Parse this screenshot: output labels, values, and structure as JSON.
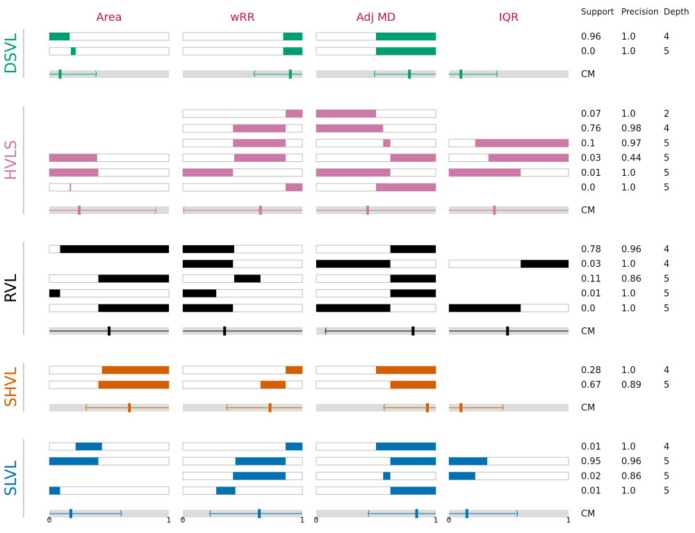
{
  "chart_data": {
    "type": "bar",
    "columns": [
      "Area",
      "wRR",
      "Adj MD",
      "IQR"
    ],
    "stats_headers": [
      "Support",
      "Precision",
      "Depth"
    ],
    "cm_label": "CM",
    "x_ticks": [
      "0",
      "1"
    ],
    "xlim": [
      0,
      1
    ],
    "groups": [
      {
        "name": "DSVL",
        "color": "#009e73",
        "rules": [
          {
            "bars": [
              [
                0,
                0.17
              ],
              [
                0.84,
                1
              ],
              [
                0.5,
                1
              ],
              null
            ],
            "support": "0.96",
            "precision": "1.0",
            "depth": "4"
          },
          {
            "bars": [
              [
                0.18,
                0.22
              ],
              [
                0.84,
                1
              ],
              [
                0.5,
                1
              ],
              null
            ],
            "support": "0.0",
            "precision": "1.0",
            "depth": "5"
          }
        ],
        "cm": [
          {
            "lo": null,
            "hi": 0.39,
            "mark": 0.09
          },
          {
            "lo": 0.6,
            "hi": null,
            "mark": 0.9
          },
          {
            "lo": 0.49,
            "hi": null,
            "mark": 0.78
          },
          {
            "lo": null,
            "hi": 0.4,
            "mark": 0.1
          }
        ]
      },
      {
        "name": "HVLS",
        "color": "#cc79a7",
        "rules": [
          {
            "bars": [
              null,
              [
                0.86,
                1
              ],
              [
                0,
                0.5
              ],
              null
            ],
            "support": "0.07",
            "precision": "1.0",
            "depth": "2"
          },
          {
            "bars": [
              null,
              [
                0.42,
                0.86
              ],
              [
                0,
                0.56
              ],
              null
            ],
            "support": "0.76",
            "precision": "0.98",
            "depth": "4"
          },
          {
            "bars": [
              null,
              [
                0.42,
                0.86
              ],
              [
                0.56,
                0.62
              ],
              [
                0.22,
                1
              ]
            ],
            "support": "0.1",
            "precision": "0.97",
            "depth": "5"
          },
          {
            "bars": [
              [
                0,
                0.4
              ],
              [
                0.43,
                0.86
              ],
              [
                0.62,
                1
              ],
              [
                0.33,
                1
              ]
            ],
            "support": "0.03",
            "precision": "0.44",
            "depth": "5"
          },
          {
            "bars": [
              [
                0,
                0.41
              ],
              [
                0,
                0.42
              ],
              [
                0,
                0.62
              ],
              [
                0,
                0.6
              ]
            ],
            "support": "0.01",
            "precision": "1.0",
            "depth": "5"
          },
          {
            "bars": [
              [
                0.17,
                0.18
              ],
              [
                0.86,
                1
              ],
              [
                0.5,
                1
              ],
              null
            ],
            "support": "0.0",
            "precision": "1.0",
            "depth": "5"
          }
        ],
        "cm": [
          {
            "lo": null,
            "hi": 0.89,
            "mark": 0.25
          },
          {
            "lo": 0.01,
            "hi": null,
            "mark": 0.65
          },
          {
            "lo": null,
            "hi": null,
            "mark": 0.43
          },
          {
            "lo": null,
            "hi": null,
            "mark": 0.38
          }
        ]
      },
      {
        "name": "RVL",
        "color": "#000000",
        "rules": [
          {
            "bars": [
              [
                0.09,
                1
              ],
              [
                0,
                0.43
              ],
              [
                0.62,
                1
              ],
              null
            ],
            "support": "0.78",
            "precision": "0.96",
            "depth": "4"
          },
          {
            "bars": [
              null,
              [
                0,
                0.42
              ],
              [
                0,
                0.62
              ],
              [
                0.6,
                1
              ]
            ],
            "support": "0.03",
            "precision": "1.0",
            "depth": "4"
          },
          {
            "bars": [
              [
                0.41,
                1
              ],
              [
                0.43,
                0.65
              ],
              [
                0.62,
                1
              ],
              null
            ],
            "support": "0.11",
            "precision": "0.86",
            "depth": "5"
          },
          {
            "bars": [
              [
                0,
                0.09
              ],
              [
                0,
                0.28
              ],
              [
                0.62,
                1
              ],
              null
            ],
            "support": "0.01",
            "precision": "1.0",
            "depth": "5"
          },
          {
            "bars": [
              [
                0.41,
                1
              ],
              [
                0,
                0.42
              ],
              [
                0,
                0.62
              ],
              [
                0,
                0.6
              ]
            ],
            "support": "0.0",
            "precision": "1.0",
            "depth": "5"
          }
        ],
        "cm": [
          {
            "lo": null,
            "hi": null,
            "mark": 0.5
          },
          {
            "lo": null,
            "hi": null,
            "mark": 0.35
          },
          {
            "lo": 0.08,
            "hi": null,
            "mark": 0.81
          },
          {
            "lo": null,
            "hi": null,
            "mark": 0.49
          }
        ]
      },
      {
        "name": "SHVL",
        "color": "#d55e00",
        "rules": [
          {
            "bars": [
              [
                0.44,
                1
              ],
              [
                0.86,
                1
              ],
              [
                0.5,
                1
              ],
              null
            ],
            "support": "0.28",
            "precision": "1.0",
            "depth": "4"
          },
          {
            "bars": [
              [
                0.41,
                1
              ],
              [
                0.65,
                0.86
              ],
              [
                0.62,
                1
              ],
              null
            ],
            "support": "0.67",
            "precision": "0.89",
            "depth": "5"
          }
        ],
        "cm": [
          {
            "lo": 0.31,
            "hi": null,
            "mark": 0.67
          },
          {
            "lo": 0.37,
            "hi": null,
            "mark": 0.73
          },
          {
            "lo": 0.57,
            "hi": null,
            "mark": 0.93
          },
          {
            "lo": null,
            "hi": 0.45,
            "mark": 0.1
          }
        ]
      },
      {
        "name": "SLVL",
        "color": "#0072b2",
        "rules": [
          {
            "bars": [
              [
                0.22,
                0.44
              ],
              [
                0.86,
                1
              ],
              [
                0.5,
                1
              ],
              null
            ],
            "support": "0.01",
            "precision": "1.0",
            "depth": "4"
          },
          {
            "bars": [
              [
                0,
                0.41
              ],
              [
                0.44,
                0.86
              ],
              [
                0.62,
                1
              ],
              [
                0,
                0.32
              ]
            ],
            "support": "0.95",
            "precision": "0.96",
            "depth": "5"
          },
          {
            "bars": [
              null,
              [
                0.42,
                0.86
              ],
              [
                0.56,
                0.62
              ],
              [
                0,
                0.22
              ]
            ],
            "support": "0.02",
            "precision": "0.86",
            "depth": "5"
          },
          {
            "bars": [
              [
                0,
                0.09
              ],
              [
                0.28,
                0.44
              ],
              [
                0.62,
                1
              ],
              null
            ],
            "support": "0.01",
            "precision": "1.0",
            "depth": "5"
          }
        ],
        "cm": [
          {
            "lo": null,
            "hi": 0.6,
            "mark": 0.18
          },
          {
            "lo": 0.23,
            "hi": null,
            "mark": 0.64
          },
          {
            "lo": 0.44,
            "hi": null,
            "mark": 0.84
          },
          {
            "lo": null,
            "hi": 0.57,
            "mark": 0.15
          }
        ]
      }
    ]
  }
}
